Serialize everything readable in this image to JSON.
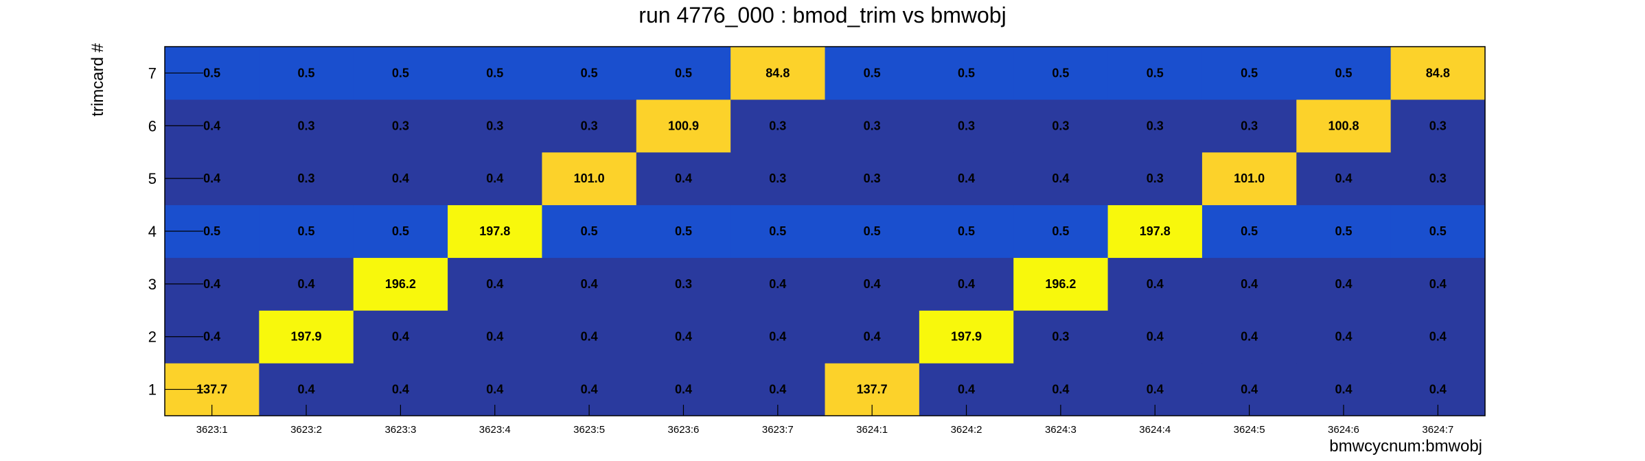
{
  "chart_data": {
    "type": "heatmap",
    "title": "run 4776_000 : bmod_trim vs bmwobj",
    "xlabel": "bmwcycnum:bmwobj",
    "ylabel": "trimcard #",
    "x_categories": [
      "3623:1",
      "3623:2",
      "3623:3",
      "3623:4",
      "3623:5",
      "3623:6",
      "3623:7",
      "3624:1",
      "3624:2",
      "3624:3",
      "3624:4",
      "3624:5",
      "3624:6",
      "3624:7"
    ],
    "y_categories": [
      "1",
      "2",
      "3",
      "4",
      "5",
      "6",
      "7"
    ],
    "values": [
      [
        "137.7",
        "0.4",
        "0.4",
        "0.4",
        "0.4",
        "0.4",
        "0.4",
        "137.7",
        "0.4",
        "0.4",
        "0.4",
        "0.4",
        "0.4",
        "0.4"
      ],
      [
        "0.4",
        "197.9",
        "0.4",
        "0.4",
        "0.4",
        "0.4",
        "0.4",
        "0.4",
        "197.9",
        "0.3",
        "0.4",
        "0.4",
        "0.4",
        "0.4"
      ],
      [
        "0.4",
        "0.4",
        "196.2",
        "0.4",
        "0.4",
        "0.3",
        "0.4",
        "0.4",
        "0.4",
        "196.2",
        "0.4",
        "0.4",
        "0.4",
        "0.4"
      ],
      [
        "0.5",
        "0.5",
        "0.5",
        "197.8",
        "0.5",
        "0.5",
        "0.5",
        "0.5",
        "0.5",
        "0.5",
        "197.8",
        "0.5",
        "0.5",
        "0.5"
      ],
      [
        "0.4",
        "0.3",
        "0.4",
        "0.4",
        "101.0",
        "0.4",
        "0.3",
        "0.3",
        "0.4",
        "0.4",
        "0.3",
        "101.0",
        "0.4",
        "0.3"
      ],
      [
        "0.4",
        "0.3",
        "0.3",
        "0.3",
        "0.3",
        "100.9",
        "0.3",
        "0.3",
        "0.3",
        "0.3",
        "0.3",
        "0.3",
        "100.8",
        "0.3"
      ],
      [
        "0.5",
        "0.5",
        "0.5",
        "0.5",
        "0.5",
        "0.5",
        "84.8",
        "0.5",
        "0.5",
        "0.5",
        "0.5",
        "0.5",
        "0.5",
        "84.8"
      ]
    ],
    "colors": {
      "low": "#2a3a9e",
      "mid_low": "#1a4fce",
      "high_mid": "#fcd22a",
      "high": "#f8f80c"
    }
  }
}
